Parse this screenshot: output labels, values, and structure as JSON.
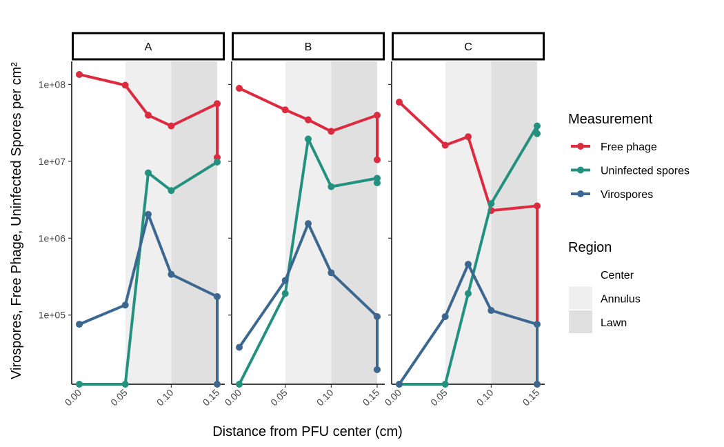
{
  "chart_data": {
    "type": "line",
    "y_scale": "log10",
    "ylabel": "Virospores, Free Phage, Uninfected Spores per cm²",
    "xlabel": "Distance from PFU center (cm)",
    "x_ticks": [
      "0.00",
      "0.05",
      "0.10",
      "0.15"
    ],
    "x_tick_values": [
      0,
      0.05,
      0.1,
      0.15
    ],
    "xlim": [
      0,
      0.15
    ],
    "y_ticks": [
      "1e+05",
      "1e+06",
      "1e+07",
      "1e+08"
    ],
    "y_tick_values": [
      100000,
      1000000,
      10000000,
      100000000
    ],
    "ylim_log10": [
      4.1,
      8.3
    ],
    "regions": [
      {
        "name": "Center",
        "from": 0,
        "to": 0.05,
        "color": "#ffffff"
      },
      {
        "name": "Annulus",
        "from": 0.05,
        "to": 0.1,
        "color": "#efefef"
      },
      {
        "name": "Lawn",
        "from": 0.1,
        "to": 0.15,
        "color": "#e0e0e0"
      }
    ],
    "legend": {
      "measurement_title": "Measurement",
      "measurement_items": [
        {
          "label": "Free phage",
          "color": "#dc2a3f"
        },
        {
          "label": "Uninfected spores",
          "color": "#23917f"
        },
        {
          "label": "Virospores",
          "color": "#3b6791"
        }
      ],
      "region_title": "Region",
      "region_items": [
        {
          "label": "Center",
          "color": "#ffffff"
        },
        {
          "label": "Annulus",
          "color": "#efefef"
        },
        {
          "label": "Lawn",
          "color": "#e0e0e0"
        }
      ]
    },
    "panels": [
      {
        "title": "A",
        "series": [
          {
            "name": "Free phage",
            "color": "#dc2a3f",
            "points": [
              [
                0,
                8.13
              ],
              [
                0.05,
                7.99
              ],
              [
                0.075,
                7.6
              ],
              [
                0.1,
                7.46
              ],
              [
                0.15,
                7.75
              ],
              [
                0.15,
                7.05
              ]
            ]
          },
          {
            "name": "Uninfected spores",
            "color": "#23917f",
            "points": [
              [
                0,
                4.1
              ],
              [
                0.05,
                4.1
              ],
              [
                0.075,
                6.85
              ],
              [
                0.1,
                6.62
              ],
              [
                0.15,
                6.99
              ]
            ]
          },
          {
            "name": "Virospores",
            "color": "#3b6791",
            "points": [
              [
                0,
                4.88
              ],
              [
                0.05,
                5.13
              ],
              [
                0.075,
                6.31
              ],
              [
                0.1,
                5.53
              ],
              [
                0.15,
                5.24
              ],
              [
                0.15,
                4.1
              ]
            ]
          }
        ]
      },
      {
        "title": "B",
        "series": [
          {
            "name": "Free phage",
            "color": "#dc2a3f",
            "points": [
              [
                0,
                7.95
              ],
              [
                0.05,
                7.67
              ],
              [
                0.075,
                7.54
              ],
              [
                0.1,
                7.39
              ],
              [
                0.15,
                7.6
              ],
              [
                0.15,
                7.02
              ]
            ]
          },
          {
            "name": "Uninfected spores",
            "color": "#23917f",
            "points": [
              [
                0,
                4.1
              ],
              [
                0.05,
                5.28
              ],
              [
                0.075,
                7.29
              ],
              [
                0.1,
                6.67
              ],
              [
                0.15,
                6.78
              ],
              [
                0.15,
                6.72
              ]
            ]
          },
          {
            "name": "Virospores",
            "color": "#3b6791",
            "points": [
              [
                0,
                4.58
              ],
              [
                0.05,
                5.45
              ],
              [
                0.075,
                6.19
              ],
              [
                0.1,
                5.55
              ],
              [
                0.15,
                4.98
              ],
              [
                0.15,
                4.29
              ]
            ]
          }
        ]
      },
      {
        "title": "C",
        "series": [
          {
            "name": "Free phage",
            "color": "#dc2a3f",
            "points": [
              [
                0,
                7.77
              ],
              [
                0.05,
                7.21
              ],
              [
                0.075,
                7.32
              ],
              [
                0.1,
                6.36
              ],
              [
                0.15,
                6.42
              ],
              [
                0.15,
                4.1
              ]
            ]
          },
          {
            "name": "Uninfected spores",
            "color": "#23917f",
            "points": [
              [
                0,
                4.1
              ],
              [
                0.05,
                4.1
              ],
              [
                0.075,
                5.28
              ],
              [
                0.1,
                6.45
              ],
              [
                0.15,
                7.46
              ],
              [
                0.15,
                7.36
              ]
            ]
          },
          {
            "name": "Virospores",
            "color": "#3b6791",
            "points": [
              [
                0,
                4.1
              ],
              [
                0.05,
                4.98
              ],
              [
                0.075,
                5.66
              ],
              [
                0.1,
                5.06
              ],
              [
                0.15,
                4.88
              ],
              [
                0.15,
                4.1
              ]
            ]
          }
        ]
      }
    ]
  }
}
